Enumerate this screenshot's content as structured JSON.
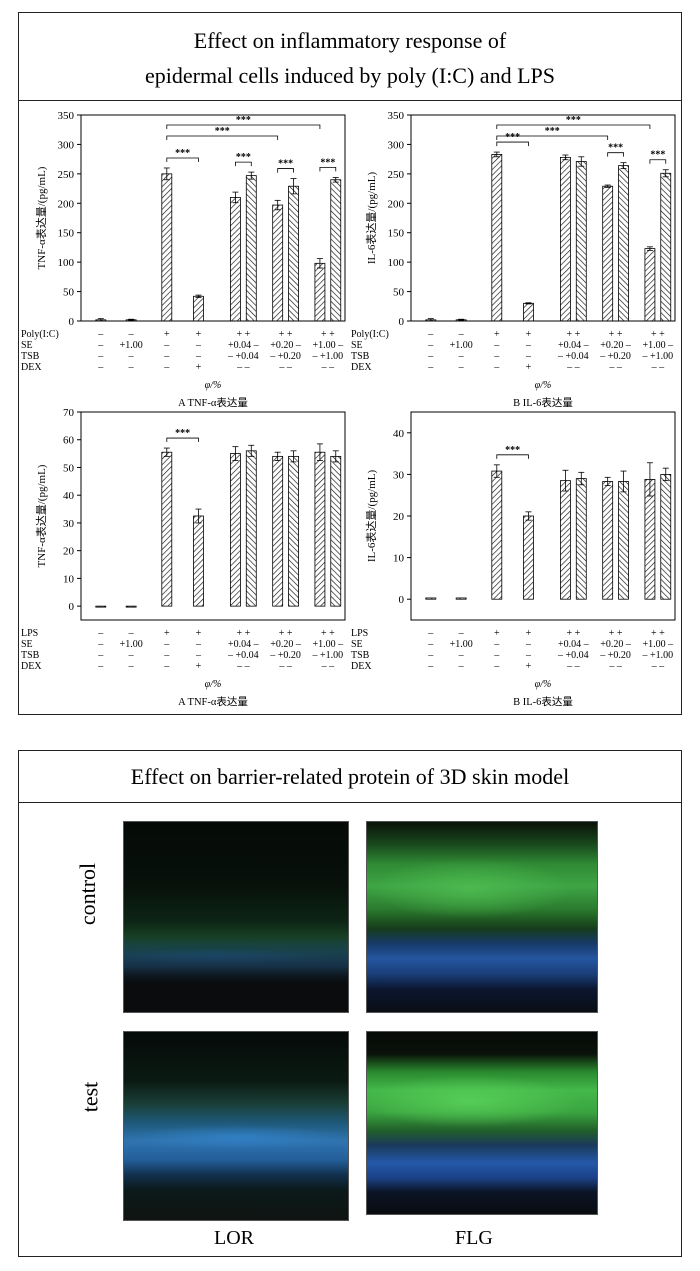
{
  "panel1": {
    "title_line1": "Effect on inflammatory response of",
    "title_line2": "epidermal cells induced by poly (I:C) and LPS"
  },
  "panel2": {
    "title": "Effect on barrier-related protein of 3D skin model",
    "row_labels": [
      "control",
      "test"
    ],
    "col_labels": [
      "LOR",
      "FLG"
    ]
  },
  "chart_data": [
    {
      "id": "c1",
      "type": "bar",
      "ylabel": "TNF-α表达量/(pg/mL)",
      "caption": "A  TNF-α表达量",
      "xlabel": "φ/%",
      "ylim": [
        0,
        350
      ],
      "yticks": [
        0,
        50,
        100,
        150,
        200,
        250,
        300,
        350
      ],
      "inducer": "Poly(I:C)",
      "values": [
        2,
        2,
        250,
        42,
        210,
        247,
        197,
        229,
        98,
        240
      ],
      "errors": [
        2,
        1,
        10,
        2,
        9,
        6,
        8,
        13,
        8,
        4
      ],
      "table": [
        [
          "Poly(I:C)",
          "–",
          "–",
          "+",
          "+",
          "+ +",
          "+ +",
          "+ +"
        ],
        [
          "SE",
          "–",
          "+1.00",
          "–",
          "–",
          "+0.04 –",
          "+0.20 –",
          "+1.00 –"
        ],
        [
          "TSB",
          "–",
          "–",
          "–",
          "–",
          "– +0.04",
          "– +0.20",
          "– +1.00"
        ],
        [
          "DEX",
          "–",
          "–",
          "–",
          "+",
          "– –",
          "– –",
          "– –"
        ]
      ],
      "brackets": [
        {
          "from": 2,
          "to": 3,
          "label": "***"
        },
        {
          "from": 2,
          "to": 6,
          "label": "***"
        },
        {
          "from": 2,
          "to": 8,
          "label": "***"
        },
        {
          "from": 4,
          "to": 5,
          "label": "***"
        },
        {
          "from": 6,
          "to": 7,
          "label": "***"
        },
        {
          "from": 8,
          "to": 9,
          "label": "***"
        }
      ]
    },
    {
      "id": "c2",
      "type": "bar",
      "ylabel": "IL-6表达量/(pg/mL)",
      "caption": "B  IL-6表达量",
      "xlabel": "φ/%",
      "ylim": [
        0,
        350
      ],
      "yticks": [
        0,
        50,
        100,
        150,
        200,
        250,
        300,
        350
      ],
      "inducer": "Poly(I:C)",
      "values": [
        2,
        2,
        283,
        30,
        278,
        271,
        229,
        264,
        123,
        251
      ],
      "errors": [
        2,
        1,
        4,
        1,
        4,
        8,
        2,
        5,
        3,
        6
      ],
      "table": [
        [
          "Poly(I:C)",
          "–",
          "–",
          "+",
          "+",
          "+ +",
          "+ +",
          "+ +"
        ],
        [
          "SE",
          "–",
          "+1.00",
          "–",
          "–",
          "+0.04 –",
          "+0.20 –",
          "+1.00 –"
        ],
        [
          "TSB",
          "–",
          "–",
          "–",
          "–",
          "– +0.04",
          "– +0.20",
          "– +1.00"
        ],
        [
          "DEX",
          "–",
          "–",
          "–",
          "+",
          "– –",
          "– –",
          "– –"
        ]
      ],
      "brackets": [
        {
          "from": 2,
          "to": 3,
          "label": "***"
        },
        {
          "from": 2,
          "to": 6,
          "label": "***"
        },
        {
          "from": 2,
          "to": 8,
          "label": "***"
        },
        {
          "from": 6,
          "to": 7,
          "label": "***"
        },
        {
          "from": 8,
          "to": 9,
          "label": "***"
        }
      ]
    },
    {
      "id": "c3",
      "type": "bar",
      "ylabel": "TNF-α表达量/(pg/mL)",
      "caption": "A  TNF-α表达量",
      "xlabel": "φ/%",
      "ylim": [
        -5,
        70
      ],
      "yticks": [
        0,
        10,
        20,
        30,
        40,
        50,
        60,
        70
      ],
      "inducer": "LPS",
      "values": [
        0,
        0,
        55.5,
        32.5,
        55,
        56,
        54,
        54,
        55.5,
        54
      ],
      "errors": [
        0,
        0,
        1.5,
        2.5,
        2.5,
        2,
        1.5,
        2,
        3,
        2
      ],
      "table": [
        [
          "LPS",
          "–",
          "–",
          "+",
          "+",
          "+ +",
          "+ +",
          "+ +"
        ],
        [
          "SE",
          "–",
          "+1.00",
          "–",
          "–",
          "+0.04 –",
          "+0.20 –",
          "+1.00 –"
        ],
        [
          "TSB",
          "–",
          "–",
          "–",
          "–",
          "– +0.04",
          "– +0.20",
          "– +1.00"
        ],
        [
          "DEX",
          "–",
          "–",
          "–",
          "+",
          "– –",
          "– –",
          "– –"
        ]
      ],
      "brackets": [
        {
          "from": 2,
          "to": 3,
          "label": "***"
        }
      ]
    },
    {
      "id": "c4",
      "type": "bar",
      "ylabel": "IL-6表达量/(pg/mL)",
      "caption": "B  IL-6表达量",
      "xlabel": "φ/%",
      "ylim": [
        -5,
        45
      ],
      "yticks": [
        0,
        10,
        20,
        30,
        40
      ],
      "inducer": "LPS",
      "values": [
        0.3,
        0.3,
        30.8,
        20,
        28.5,
        29,
        28.3,
        28.3,
        28.8,
        30
      ],
      "errors": [
        0,
        0,
        1.5,
        1,
        2.5,
        1.5,
        1,
        2.5,
        4,
        1.5
      ],
      "table": [
        [
          "LPS",
          "–",
          "–",
          "+",
          "+",
          "+ +",
          "+ +",
          "+ +"
        ],
        [
          "SE",
          "–",
          "+1.00",
          "–",
          "–",
          "+0.04 –",
          "+0.20 –",
          "+1.00 –"
        ],
        [
          "TSB",
          "–",
          "–",
          "–",
          "–",
          "– +0.04",
          "– +0.20",
          "– +1.00"
        ],
        [
          "DEX",
          "–",
          "–",
          "–",
          "+",
          "– –",
          "– –",
          "– –"
        ]
      ],
      "brackets": [
        {
          "from": 2,
          "to": 3,
          "label": "***"
        }
      ]
    }
  ]
}
